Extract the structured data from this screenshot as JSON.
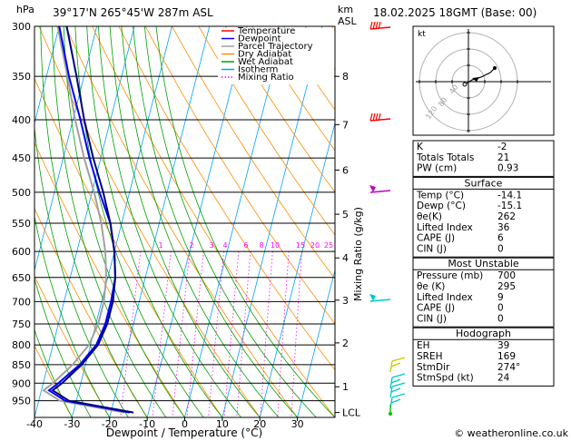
{
  "header": {
    "pressure_unit": "hPa",
    "location": "39°17'N  265°45'W  287m  ASL",
    "height_unit_line1": "km",
    "height_unit_line2": "ASL",
    "datetime": "18.02.2025  18GMT  (Base: 00)"
  },
  "footer": {
    "copyright": "© weatheronline.co.uk"
  },
  "colors": {
    "temperature": "#ff0000",
    "dewpoint": "#0000ff",
    "parcel": "#a0a0a0",
    "dry_adiabat": "#ff8c00",
    "wet_adiabat": "#00a000",
    "isotherm": "#00a0ff",
    "mixing_ratio": "#ff00ff",
    "profile": "#000080",
    "wind": "#00c8c8"
  },
  "chart_data": {
    "type": "skew-T log-P diagram",
    "xlabel": "Dewpoint / Temperature (°C)",
    "ylabel_right": "Mixing Ratio (g/kg)",
    "pressure_ticks": [
      300,
      350,
      400,
      450,
      500,
      550,
      600,
      650,
      700,
      750,
      800,
      850,
      900,
      950
    ],
    "pressure_range": [
      300,
      1000
    ],
    "temperature_ticks": [
      -40,
      -30,
      -20,
      -10,
      0,
      10,
      20,
      30
    ],
    "temperature_range": [
      -40,
      40
    ],
    "height_ticks": [
      {
        "label": "8",
        "p": 350
      },
      {
        "label": "7",
        "p": 406
      },
      {
        "label": "6",
        "p": 467
      },
      {
        "label": "5",
        "p": 535
      },
      {
        "label": "4",
        "p": 612
      },
      {
        "label": "3",
        "p": 697
      },
      {
        "label": "2",
        "p": 795
      },
      {
        "label": "1",
        "p": 910
      },
      {
        "label": "LCL",
        "p": 985
      }
    ],
    "mixing_ratio_labels": [
      "1",
      "2",
      "3",
      "4",
      "6",
      "8",
      "10",
      "15",
      "20",
      "25"
    ],
    "legend": [
      "Temperature",
      "Dewpoint",
      "Parcel Trajectory",
      "Dry Adiabat",
      "Wet Adiabat",
      "Isotherm",
      "Mixing Ratio"
    ],
    "series": [
      {
        "name": "Temperature",
        "p": [
          300,
          350,
          400,
          450,
          500,
          550,
          600,
          650,
          700,
          750,
          800,
          850,
          900,
          920,
          950,
          985
        ],
        "t": [
          -58,
          -52,
          -47,
          -42,
          -37,
          -33,
          -30,
          -28,
          -27,
          -27,
          -28,
          -31,
          -35,
          -37,
          -32,
          -14
        ]
      },
      {
        "name": "Dewpoint",
        "p": [
          300,
          350,
          400,
          450,
          500,
          550,
          600,
          650,
          700,
          750,
          800,
          850,
          900,
          920,
          950,
          985
        ],
        "t": [
          -60,
          -54,
          -48,
          -43,
          -38,
          -33,
          -30,
          -28,
          -27.5,
          -27.5,
          -28.5,
          -31.5,
          -36,
          -38,
          -33,
          -15
        ]
      }
    ]
  },
  "hodograph": {
    "corner_label": "kt",
    "ring_labels": [
      "40",
      "80",
      "120"
    ]
  },
  "indices": [
    {
      "label": "K",
      "value": "-2"
    },
    {
      "label": "Totals Totals",
      "value": "21"
    },
    {
      "label": "PW (cm)",
      "value": "0.93"
    }
  ],
  "surface": {
    "title": "Surface",
    "rows": [
      {
        "label": "Temp (°C)",
        "value": "-14.1"
      },
      {
        "label": "Dewp (°C)",
        "value": "-15.1"
      },
      {
        "label": "θe(K)",
        "value": "262"
      },
      {
        "label": "Lifted Index",
        "value": "36"
      },
      {
        "label": "CAPE (J)",
        "value": "6"
      },
      {
        "label": "CIN (J)",
        "value": "0"
      }
    ]
  },
  "most_unstable": {
    "title": "Most Unstable",
    "rows": [
      {
        "label": "Pressure (mb)",
        "value": "700"
      },
      {
        "label": "θe (K)",
        "value": "295"
      },
      {
        "label": "Lifted Index",
        "value": "9"
      },
      {
        "label": "CAPE (J)",
        "value": "0"
      },
      {
        "label": "CIN (J)",
        "value": "0"
      }
    ]
  },
  "hodograph_table": {
    "title": "Hodograph",
    "rows": [
      {
        "label": "EH",
        "value": "39"
      },
      {
        "label": "SREH",
        "value": "169"
      },
      {
        "label": "StmDir",
        "value": "274°"
      },
      {
        "label": "StmSpd (kt)",
        "value": "24"
      }
    ]
  }
}
